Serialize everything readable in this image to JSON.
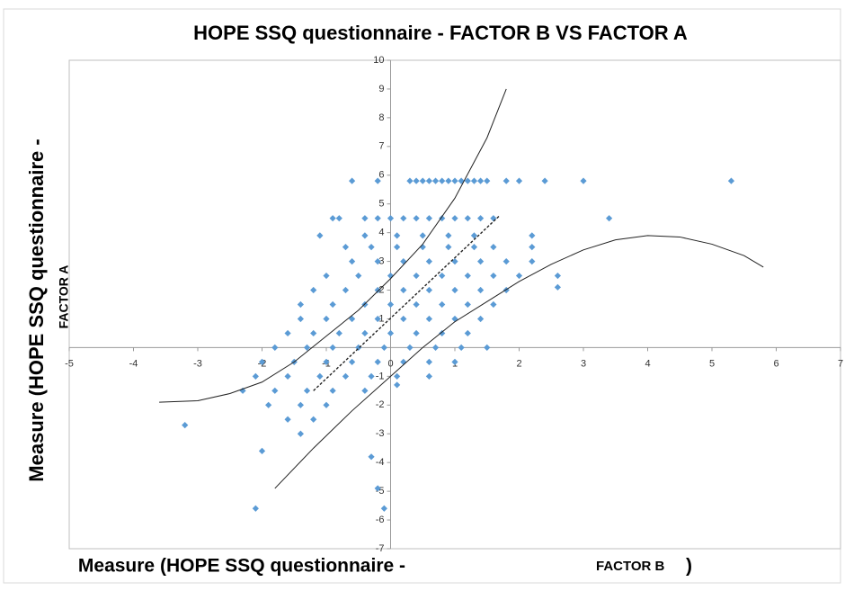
{
  "chart_data": {
    "type": "scatter",
    "title": "HOPE SSQ questionnaire -  FACTOR B VS FACTOR A",
    "xlabel_parts": [
      "Measure (HOPE SSQ questionnaire -",
      "FACTOR B",
      ")"
    ],
    "ylabel_parts": [
      "Measure (HOPE SSQ questionnaire -",
      "FACTOR A"
    ],
    "xlim": [
      -5,
      7
    ],
    "ylim": [
      -7,
      10
    ],
    "xticks": [
      -5,
      -4,
      -3,
      -2,
      -1,
      0,
      1,
      2,
      3,
      4,
      5,
      6,
      7
    ],
    "yticks": [
      -7,
      -6,
      -5,
      -4,
      -3,
      -2,
      -1,
      1,
      2,
      3,
      4,
      5,
      6,
      7,
      8,
      9,
      10
    ],
    "color": "#5b9bd5",
    "x": [
      -0.6,
      -0.2,
      0.3,
      0.4,
      0.5,
      0.6,
      0.7,
      0.8,
      0.9,
      1.0,
      1.1,
      1.2,
      1.3,
      1.4,
      1.5,
      1.8,
      2.0,
      2.4,
      3.0,
      5.3,
      -0.9,
      -0.8,
      -0.4,
      -0.2,
      0,
      0.2,
      0.4,
      0.6,
      0.8,
      1.0,
      1.2,
      1.4,
      1.6,
      3.4,
      -1.1,
      -0.4,
      0.1,
      0.5,
      0.9,
      1.3,
      2.2,
      -0.7,
      -0.3,
      0.1,
      0.5,
      0.9,
      1.3,
      1.6,
      2.2,
      -0.6,
      -0.2,
      0.2,
      0.6,
      1.0,
      1.4,
      1.8,
      2.2,
      -1.0,
      -0.5,
      0,
      0.4,
      0.8,
      1.2,
      1.6,
      2.0,
      2.6,
      -1.2,
      -0.7,
      -0.2,
      0.2,
      0.6,
      1.0,
      1.4,
      1.8,
      -1.4,
      -0.9,
      -0.4,
      0,
      0.4,
      0.8,
      1.2,
      1.6,
      -1.4,
      -1.0,
      -0.6,
      -0.2,
      0.2,
      0.6,
      1.0,
      1.4,
      -1.6,
      -1.2,
      -0.8,
      -0.4,
      0,
      0.4,
      0.8,
      1.2,
      -1.8,
      -1.3,
      -0.9,
      -0.5,
      -0.1,
      0.3,
      0.7,
      1.1,
      1.5,
      -2.0,
      -1.5,
      -1.0,
      -0.6,
      -0.2,
      0.2,
      0.6,
      1.0,
      -2.1,
      -1.6,
      -1.1,
      -0.7,
      -0.3,
      0.1,
      0.6,
      -2.3,
      -1.8,
      -1.3,
      -0.9,
      -0.4,
      -1.9,
      -1.4,
      -1.0,
      -1.6,
      -1.2,
      -1.4,
      -3.2,
      -2.0,
      -2.1,
      -0.3,
      -0.2,
      -0.1,
      2.6,
      0.1
    ],
    "values": [
      5.8,
      5.8,
      5.8,
      5.8,
      5.8,
      5.8,
      5.8,
      5.8,
      5.8,
      5.8,
      5.8,
      5.8,
      5.8,
      5.8,
      5.8,
      5.8,
      5.8,
      5.8,
      5.8,
      5.8,
      4.5,
      4.5,
      4.5,
      4.5,
      4.5,
      4.5,
      4.5,
      4.5,
      4.5,
      4.5,
      4.5,
      4.5,
      4.5,
      4.5,
      3.9,
      3.9,
      3.9,
      3.9,
      3.9,
      3.9,
      3.9,
      3.5,
      3.5,
      3.5,
      3.5,
      3.5,
      3.5,
      3.5,
      3.5,
      3.0,
      3.0,
      3.0,
      3.0,
      3.0,
      3.0,
      3.0,
      3.0,
      2.5,
      2.5,
      2.5,
      2.5,
      2.5,
      2.5,
      2.5,
      2.5,
      2.5,
      2.0,
      2.0,
      2.0,
      2.0,
      2.0,
      2.0,
      2.0,
      2.0,
      1.5,
      1.5,
      1.5,
      1.5,
      1.5,
      1.5,
      1.5,
      1.5,
      1.0,
      1.0,
      1.0,
      1.0,
      1.0,
      1.0,
      1.0,
      1.0,
      0.5,
      0.5,
      0.5,
      0.5,
      0.5,
      0.5,
      0.5,
      0.5,
      0,
      0,
      0,
      0,
      0,
      0,
      0,
      0,
      0,
      -0.5,
      -0.5,
      -0.5,
      -0.5,
      -0.5,
      -0.5,
      -0.5,
      -0.5,
      -1,
      -1,
      -1,
      -1,
      -1,
      -1,
      -1,
      -1.5,
      -1.5,
      -1.5,
      -1.5,
      -1.5,
      -2,
      -2,
      -2,
      -2.5,
      -2.5,
      -3,
      -2.7,
      -3.6,
      -5.6,
      -3.8,
      -4.9,
      -5.6,
      2.1,
      -1.3
    ],
    "lines": [
      {
        "x": [
          -3.6,
          -3,
          -2.5,
          -2,
          -1.5,
          -1,
          -0.5,
          0,
          0.5,
          1,
          1.5,
          1.8
        ],
        "values": [
          -1.9,
          -1.85,
          -1.6,
          -1.2,
          -0.5,
          0.4,
          1.3,
          2.4,
          3.6,
          5.2,
          7.3,
          9
        ],
        "dashed": false
      },
      {
        "x": [
          -1.8,
          -1.2,
          -0.6,
          0,
          0.5,
          1,
          1.5,
          2,
          2.5,
          3,
          3.5,
          4,
          4.5,
          5,
          5.5,
          5.8
        ],
        "values": [
          -4.9,
          -3.5,
          -2.2,
          -1,
          0,
          0.9,
          1.6,
          2.3,
          2.9,
          3.4,
          3.75,
          3.9,
          3.85,
          3.6,
          3.2,
          2.8
        ],
        "dashed": false
      },
      {
        "x": [
          -1.2,
          1.7
        ],
        "values": [
          -1.5,
          4.6
        ],
        "dashed": true
      }
    ]
  }
}
